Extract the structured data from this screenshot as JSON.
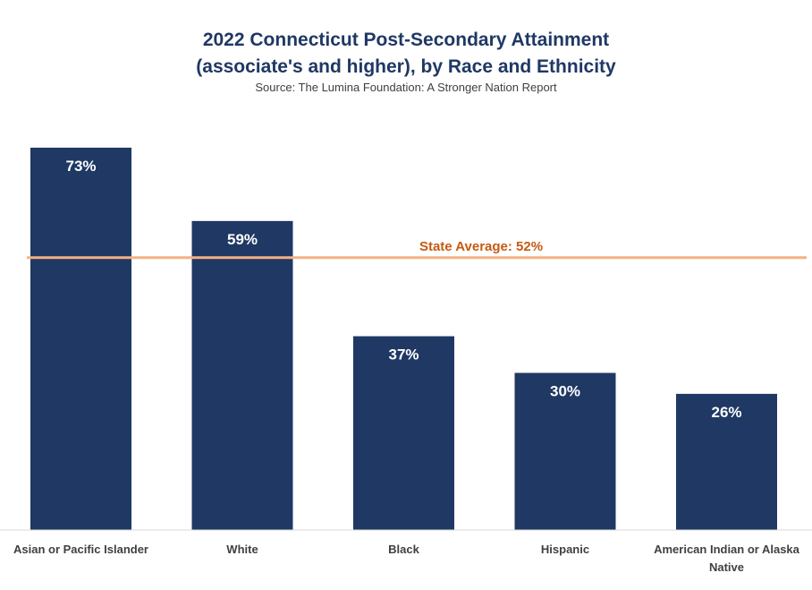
{
  "chart_data": {
    "type": "bar",
    "title_line1": "2022 Connecticut Post-Secondary Attainment",
    "title_line2": "(associate's and higher), by Race and Ethnicity",
    "subtitle": "Source: The Lumina Foundation:  A Stronger Nation Report",
    "categories": [
      [
        "Asian or Pacific Islander"
      ],
      [
        "White"
      ],
      [
        "Black"
      ],
      [
        "Hispanic"
      ],
      [
        "American Indian or Alaska",
        "Native"
      ]
    ],
    "values": [
      73,
      59,
      37,
      30,
      26
    ],
    "value_labels": [
      "73%",
      "59%",
      "37%",
      "30%",
      "26%"
    ],
    "reference_line": {
      "value": 52,
      "label": "State Average: 52%"
    },
    "ylim": [
      0,
      100
    ],
    "grid": false,
    "colors": {
      "bar": "#1f3864",
      "reference_line": "#f4b183",
      "reference_label": "#c55a11",
      "title": "#1f3864"
    }
  }
}
